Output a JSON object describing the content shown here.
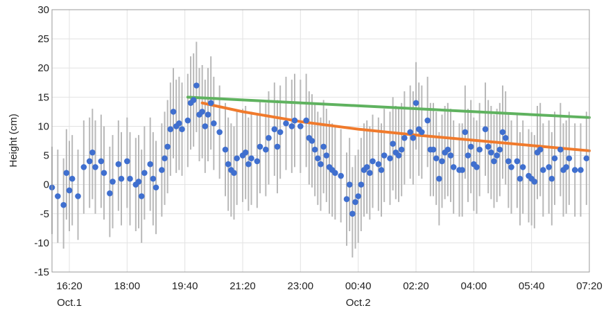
{
  "chart_data": {
    "type": "scatter",
    "title": "",
    "xlabel": "",
    "ylabel": "Height (cm)",
    "ylim": [
      -15,
      30
    ],
    "y_ticks": [
      -15,
      -10,
      -5,
      0,
      5,
      10,
      15,
      20,
      25,
      30
    ],
    "x_range": [
      "Oct.1 15:50",
      "Oct.2 07:20"
    ],
    "x_ticks": [
      "16:20",
      "18:00",
      "19:40",
      "21:20",
      "23:00",
      "00:40",
      "02:20",
      "04:00",
      "05:40",
      "07:20"
    ],
    "date_labels": [
      {
        "text": "Oct.1",
        "at": "16:20"
      },
      {
        "text": "Oct.2",
        "at": "00:40"
      }
    ],
    "grid": true,
    "colors": {
      "points": "#3f6fcf",
      "error_bars": "#b8b8b8",
      "green_line": "#5fb25f",
      "orange_line": "#f07a2c",
      "grid": "#e2e2e2"
    },
    "points": [
      {
        "t": "15:50",
        "y": -0.5,
        "lo": -8.5,
        "hi": 6.5
      },
      {
        "t": "16:00",
        "y": -2.0,
        "lo": -10.0,
        "hi": 6.0
      },
      {
        "t": "16:10",
        "y": -3.5,
        "lo": -11.0,
        "hi": 4.5
      },
      {
        "t": "16:15",
        "y": 2.0,
        "lo": -6.0,
        "hi": 9.5
      },
      {
        "t": "16:20",
        "y": -1.0,
        "lo": -8.0,
        "hi": 7.5
      },
      {
        "t": "16:25",
        "y": 1.0,
        "lo": -7.0,
        "hi": 8.5
      },
      {
        "t": "16:35",
        "y": -2.0,
        "lo": -9.5,
        "hi": 6.0
      },
      {
        "t": "16:45",
        "y": 3.0,
        "lo": -5.0,
        "hi": 11.0
      },
      {
        "t": "16:55",
        "y": 4.0,
        "lo": -4.0,
        "hi": 11.5
      },
      {
        "t": "17:00",
        "y": 5.5,
        "lo": -2.5,
        "hi": 13.0
      },
      {
        "t": "17:05",
        "y": 3.0,
        "lo": -5.0,
        "hi": 11.0
      },
      {
        "t": "17:15",
        "y": 4.0,
        "lo": -4.0,
        "hi": 12.0
      },
      {
        "t": "17:20",
        "y": 2.0,
        "lo": -6.0,
        "hi": 10.0
      },
      {
        "t": "17:30",
        "y": -1.5,
        "lo": -9.0,
        "hi": 6.5
      },
      {
        "t": "17:35",
        "y": 0.5,
        "lo": -7.5,
        "hi": 8.5
      },
      {
        "t": "17:45",
        "y": 3.5,
        "lo": -4.5,
        "hi": 11.0
      },
      {
        "t": "17:50",
        "y": 1.0,
        "lo": -7.0,
        "hi": 9.0
      },
      {
        "t": "18:00",
        "y": 4.0,
        "lo": -4.0,
        "hi": 11.5
      },
      {
        "t": "18:05",
        "y": 1.0,
        "lo": -7.0,
        "hi": 9.0
      },
      {
        "t": "18:15",
        "y": 0.0,
        "lo": -8.0,
        "hi": 8.0
      },
      {
        "t": "18:20",
        "y": 0.5,
        "lo": -7.5,
        "hi": 8.5
      },
      {
        "t": "18:25",
        "y": -2.0,
        "lo": -10.0,
        "hi": 6.0
      },
      {
        "t": "18:30",
        "y": 2.0,
        "lo": -6.0,
        "hi": 10.0
      },
      {
        "t": "18:40",
        "y": 3.5,
        "lo": -4.5,
        "hi": 11.5
      },
      {
        "t": "18:45",
        "y": 1.0,
        "lo": -7.0,
        "hi": 9.0
      },
      {
        "t": "18:50",
        "y": -0.5,
        "lo": -8.5,
        "hi": 7.5
      },
      {
        "t": "19:00",
        "y": 2.5,
        "lo": -5.5,
        "hi": 10.5
      },
      {
        "t": "19:05",
        "y": 4.5,
        "lo": -3.5,
        "hi": 12.5
      },
      {
        "t": "19:10",
        "y": 6.5,
        "lo": -1.5,
        "hi": 14.5
      },
      {
        "t": "19:15",
        "y": 9.5,
        "lo": 1.5,
        "hi": 17.5
      },
      {
        "t": "19:20",
        "y": 12.5,
        "lo": 4.5,
        "hi": 20.0
      },
      {
        "t": "19:25",
        "y": 10.0,
        "lo": 2.0,
        "hi": 18.0
      },
      {
        "t": "19:30",
        "y": 10.5,
        "lo": 2.5,
        "hi": 18.5
      },
      {
        "t": "19:35",
        "y": 9.5,
        "lo": 1.5,
        "hi": 17.5
      },
      {
        "t": "19:45",
        "y": 11.0,
        "lo": 3.0,
        "hi": 19.0
      },
      {
        "t": "19:50",
        "y": 14.0,
        "lo": 6.0,
        "hi": 22.0
      },
      {
        "t": "19:55",
        "y": 14.5,
        "lo": 6.5,
        "hi": 22.5
      },
      {
        "t": "20:00",
        "y": 17.0,
        "lo": 9.0,
        "hi": 24.5
      },
      {
        "t": "20:05",
        "y": 12.0,
        "lo": 4.0,
        "hi": 20.0
      },
      {
        "t": "20:10",
        "y": 12.5,
        "lo": 4.5,
        "hi": 20.5
      },
      {
        "t": "20:15",
        "y": 10.0,
        "lo": 2.0,
        "hi": 18.0
      },
      {
        "t": "20:20",
        "y": 12.0,
        "lo": 4.0,
        "hi": 20.0
      },
      {
        "t": "20:25",
        "y": 14.0,
        "lo": 6.0,
        "hi": 22.0
      },
      {
        "t": "20:30",
        "y": 10.5,
        "lo": 2.5,
        "hi": 18.5
      },
      {
        "t": "20:40",
        "y": 9.0,
        "lo": 1.0,
        "hi": 17.0
      },
      {
        "t": "20:50",
        "y": 6.0,
        "lo": -2.0,
        "hi": 14.0
      },
      {
        "t": "20:55",
        "y": 3.5,
        "lo": -4.5,
        "hi": 11.5
      },
      {
        "t": "21:00",
        "y": 2.5,
        "lo": -5.5,
        "hi": 10.5
      },
      {
        "t": "21:05",
        "y": 2.0,
        "lo": -6.0,
        "hi": 10.0
      },
      {
        "t": "21:10",
        "y": 4.5,
        "lo": -3.5,
        "hi": 12.5
      },
      {
        "t": "21:20",
        "y": 5.0,
        "lo": -3.0,
        "hi": 13.0
      },
      {
        "t": "21:25",
        "y": 5.5,
        "lo": -2.5,
        "hi": 13.5
      },
      {
        "t": "21:30",
        "y": 3.5,
        "lo": -4.5,
        "hi": 11.5
      },
      {
        "t": "21:35",
        "y": 4.5,
        "lo": -3.5,
        "hi": 12.5
      },
      {
        "t": "21:45",
        "y": 4.0,
        "lo": -4.0,
        "hi": 12.0
      },
      {
        "t": "21:50",
        "y": 6.5,
        "lo": -1.5,
        "hi": 14.5
      },
      {
        "t": "22:00",
        "y": 6.0,
        "lo": -2.0,
        "hi": 14.0
      },
      {
        "t": "22:05",
        "y": 8.0,
        "lo": 0.0,
        "hi": 16.0
      },
      {
        "t": "22:15",
        "y": 9.5,
        "lo": 1.5,
        "hi": 17.5
      },
      {
        "t": "22:20",
        "y": 6.5,
        "lo": -1.5,
        "hi": 14.5
      },
      {
        "t": "22:25",
        "y": 9.0,
        "lo": 1.0,
        "hi": 17.0
      },
      {
        "t": "22:35",
        "y": 10.5,
        "lo": 2.5,
        "hi": 18.5
      },
      {
        "t": "22:45",
        "y": 10.0,
        "lo": 2.0,
        "hi": 18.0
      },
      {
        "t": "22:50",
        "y": 11.0,
        "lo": 3.0,
        "hi": 19.0
      },
      {
        "t": "23:00",
        "y": 10.0,
        "lo": 2.0,
        "hi": 18.0
      },
      {
        "t": "23:10",
        "y": 11.0,
        "lo": 3.0,
        "hi": 19.0
      },
      {
        "t": "23:15",
        "y": 8.0,
        "lo": 0.0,
        "hi": 16.0
      },
      {
        "t": "23:20",
        "y": 7.5,
        "lo": -0.5,
        "hi": 15.5
      },
      {
        "t": "23:25",
        "y": 6.0,
        "lo": -2.0,
        "hi": 14.0
      },
      {
        "t": "23:30",
        "y": 4.5,
        "lo": -3.5,
        "hi": 12.5
      },
      {
        "t": "23:35",
        "y": 3.5,
        "lo": -4.5,
        "hi": 11.5
      },
      {
        "t": "23:40",
        "y": 6.5,
        "lo": -1.5,
        "hi": 14.5
      },
      {
        "t": "23:45",
        "y": 5.0,
        "lo": -3.0,
        "hi": 13.0
      },
      {
        "t": "23:50",
        "y": 3.0,
        "lo": -5.0,
        "hi": 11.0
      },
      {
        "t": "23:55",
        "y": 2.5,
        "lo": -5.5,
        "hi": 10.5
      },
      {
        "t": "00:00",
        "y": 2.0,
        "lo": -6.0,
        "hi": 10.0
      },
      {
        "t": "00:10",
        "y": 1.5,
        "lo": -6.5,
        "hi": 9.5
      },
      {
        "t": "00:20",
        "y": -2.5,
        "lo": -10.5,
        "hi": 5.5
      },
      {
        "t": "00:25",
        "y": 0.0,
        "lo": -8.0,
        "hi": 8.0
      },
      {
        "t": "00:30",
        "y": -5.0,
        "lo": -12.5,
        "hi": 3.0
      },
      {
        "t": "00:35",
        "y": -3.0,
        "lo": -11.0,
        "hi": 5.0
      },
      {
        "t": "00:40",
        "y": -2.0,
        "lo": -10.0,
        "hi": 6.0
      },
      {
        "t": "00:45",
        "y": 0.0,
        "lo": -8.0,
        "hi": 8.0
      },
      {
        "t": "00:50",
        "y": 2.5,
        "lo": -5.5,
        "hi": 10.5
      },
      {
        "t": "00:55",
        "y": 3.0,
        "lo": -5.0,
        "hi": 11.0
      },
      {
        "t": "01:00",
        "y": 2.0,
        "lo": -6.0,
        "hi": 10.0
      },
      {
        "t": "01:05",
        "y": 4.0,
        "lo": -4.0,
        "hi": 12.0
      },
      {
        "t": "01:15",
        "y": 3.5,
        "lo": -4.5,
        "hi": 11.5
      },
      {
        "t": "01:20",
        "y": 2.5,
        "lo": -5.5,
        "hi": 10.5
      },
      {
        "t": "01:25",
        "y": 5.0,
        "lo": -3.0,
        "hi": 13.0
      },
      {
        "t": "01:35",
        "y": 4.5,
        "lo": -3.5,
        "hi": 12.5
      },
      {
        "t": "01:40",
        "y": 7.0,
        "lo": -1.0,
        "hi": 15.0
      },
      {
        "t": "01:45",
        "y": 5.5,
        "lo": -2.5,
        "hi": 13.5
      },
      {
        "t": "01:50",
        "y": 5.0,
        "lo": -3.0,
        "hi": 13.0
      },
      {
        "t": "01:55",
        "y": 6.0,
        "lo": -2.0,
        "hi": 14.0
      },
      {
        "t": "02:00",
        "y": 8.0,
        "lo": 0.0,
        "hi": 16.0
      },
      {
        "t": "02:10",
        "y": 9.0,
        "lo": 1.0,
        "hi": 17.0
      },
      {
        "t": "02:15",
        "y": 8.0,
        "lo": 0.0,
        "hi": 16.0
      },
      {
        "t": "02:20",
        "y": 14.0,
        "lo": 6.0,
        "hi": 21.0
      },
      {
        "t": "02:25",
        "y": 9.5,
        "lo": 1.5,
        "hi": 17.5
      },
      {
        "t": "02:30",
        "y": 9.0,
        "lo": 1.0,
        "hi": 17.0
      },
      {
        "t": "02:40",
        "y": 11.0,
        "lo": 3.0,
        "hi": 18.5
      },
      {
        "t": "02:45",
        "y": 6.0,
        "lo": -2.0,
        "hi": 14.0
      },
      {
        "t": "02:50",
        "y": 6.0,
        "lo": -2.0,
        "hi": 14.0
      },
      {
        "t": "02:55",
        "y": 4.5,
        "lo": -3.5,
        "hi": 12.5
      },
      {
        "t": "03:00",
        "y": 1.0,
        "lo": -7.0,
        "hi": 9.0
      },
      {
        "t": "03:05",
        "y": 4.0,
        "lo": -4.0,
        "hi": 12.0
      },
      {
        "t": "03:10",
        "y": 5.5,
        "lo": -2.5,
        "hi": 13.5
      },
      {
        "t": "03:15",
        "y": 6.0,
        "lo": -2.0,
        "hi": 14.0
      },
      {
        "t": "03:20",
        "y": 5.0,
        "lo": -3.0,
        "hi": 13.0
      },
      {
        "t": "03:25",
        "y": 3.0,
        "lo": -5.0,
        "hi": 11.0
      },
      {
        "t": "03:35",
        "y": 2.5,
        "lo": -5.5,
        "hi": 10.5
      },
      {
        "t": "03:40",
        "y": 2.5,
        "lo": -5.5,
        "hi": 10.5
      },
      {
        "t": "03:45",
        "y": 9.0,
        "lo": 1.0,
        "hi": 17.0
      },
      {
        "t": "03:50",
        "y": 5.0,
        "lo": -3.0,
        "hi": 13.0
      },
      {
        "t": "03:55",
        "y": 6.5,
        "lo": -1.5,
        "hi": 14.5
      },
      {
        "t": "04:00",
        "y": 3.5,
        "lo": -4.5,
        "hi": 11.5
      },
      {
        "t": "04:05",
        "y": 3.0,
        "lo": -5.0,
        "hi": 11.0
      },
      {
        "t": "04:10",
        "y": 6.0,
        "lo": -2.0,
        "hi": 14.0
      },
      {
        "t": "04:20",
        "y": 9.5,
        "lo": 1.5,
        "hi": 17.5
      },
      {
        "t": "04:25",
        "y": 6.5,
        "lo": -1.5,
        "hi": 14.5
      },
      {
        "t": "04:30",
        "y": 5.5,
        "lo": -2.5,
        "hi": 13.5
      },
      {
        "t": "04:35",
        "y": 4.0,
        "lo": -4.0,
        "hi": 12.0
      },
      {
        "t": "04:40",
        "y": 5.0,
        "lo": -3.0,
        "hi": 13.0
      },
      {
        "t": "04:45",
        "y": 6.0,
        "lo": -2.0,
        "hi": 14.0
      },
      {
        "t": "04:50",
        "y": 9.0,
        "lo": 1.0,
        "hi": 17.0
      },
      {
        "t": "04:55",
        "y": 8.0,
        "lo": 0.0,
        "hi": 16.0
      },
      {
        "t": "05:00",
        "y": 4.0,
        "lo": -4.0,
        "hi": 12.0
      },
      {
        "t": "05:05",
        "y": 3.0,
        "lo": -5.0,
        "hi": 11.0
      },
      {
        "t": "05:15",
        "y": 4.0,
        "lo": -4.0,
        "hi": 12.0
      },
      {
        "t": "05:20",
        "y": 1.0,
        "lo": -7.0,
        "hi": 9.0
      },
      {
        "t": "05:25",
        "y": 3.0,
        "lo": -5.0,
        "hi": 11.0
      },
      {
        "t": "05:35",
        "y": 1.5,
        "lo": -6.5,
        "hi": 9.5
      },
      {
        "t": "05:40",
        "y": 1.0,
        "lo": -7.0,
        "hi": 9.0
      },
      {
        "t": "05:45",
        "y": 0.5,
        "lo": -7.5,
        "hi": 8.5
      },
      {
        "t": "05:50",
        "y": 5.5,
        "lo": -2.5,
        "hi": 13.5
      },
      {
        "t": "05:55",
        "y": 6.0,
        "lo": -2.0,
        "hi": 14.0
      },
      {
        "t": "06:00",
        "y": 2.5,
        "lo": -5.5,
        "hi": 10.5
      },
      {
        "t": "06:10",
        "y": 3.0,
        "lo": -5.0,
        "hi": 11.0
      },
      {
        "t": "06:15",
        "y": 1.0,
        "lo": -7.0,
        "hi": 9.0
      },
      {
        "t": "06:20",
        "y": 4.5,
        "lo": -3.5,
        "hi": 12.5
      },
      {
        "t": "06:30",
        "y": 6.0,
        "lo": -2.0,
        "hi": 14.0
      },
      {
        "t": "06:35",
        "y": 2.5,
        "lo": -5.5,
        "hi": 10.5
      },
      {
        "t": "06:40",
        "y": 3.0,
        "lo": -5.0,
        "hi": 11.0
      },
      {
        "t": "06:45",
        "y": 4.5,
        "lo": -3.5,
        "hi": 12.5
      },
      {
        "t": "06:55",
        "y": 2.5,
        "lo": -5.5,
        "hi": 10.5
      },
      {
        "t": "07:05",
        "y": 2.5,
        "lo": -5.5,
        "hi": 10.5
      },
      {
        "t": "07:15",
        "y": 4.5,
        "lo": -3.5,
        "hi": 12.5
      }
    ],
    "green_line": [
      {
        "t": "19:45",
        "y": 15.0
      },
      {
        "t": "07:20",
        "y": 11.5
      }
    ],
    "orange_line": [
      {
        "t": "20:10",
        "y": 14.0
      },
      {
        "t": "21:20",
        "y": 12.5
      },
      {
        "t": "23:00",
        "y": 10.8
      },
      {
        "t": "00:40",
        "y": 9.5
      },
      {
        "t": "02:20",
        "y": 8.5
      },
      {
        "t": "04:00",
        "y": 7.6
      },
      {
        "t": "05:40",
        "y": 6.7
      },
      {
        "t": "07:20",
        "y": 5.8
      }
    ]
  }
}
